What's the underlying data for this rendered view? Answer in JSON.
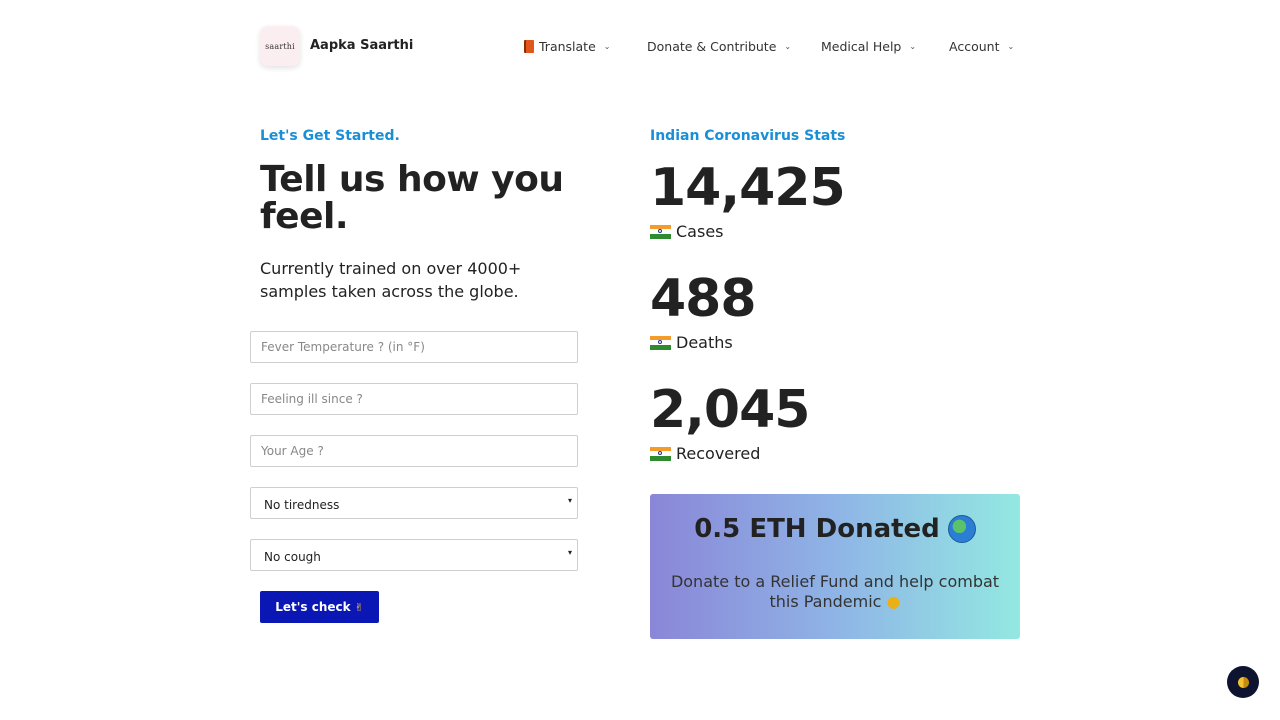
{
  "header": {
    "logo_text": "saarthi",
    "brand": "Aapka Saarthi",
    "nav": [
      {
        "label": "Translate",
        "icon": "book-icon"
      },
      {
        "label": "Donate & Contribute"
      },
      {
        "label": "Medical Help"
      },
      {
        "label": "Account"
      }
    ]
  },
  "form": {
    "eyebrow": "Let's Get Started.",
    "headline": "Tell us how you feel.",
    "subtext": "Currently trained on over 4000+ samples taken across the globe.",
    "fever_placeholder": "Fever Temperature ? (in °F)",
    "ill_since_placeholder": "Feeling ill since ?",
    "age_placeholder": "Your Age ?",
    "tiredness_value": "No tiredness",
    "cough_value": "No cough",
    "submit_label": "Let's check"
  },
  "stats": {
    "eyebrow": "Indian Coronavirus Stats",
    "cases_value": "14,425",
    "cases_label": "Cases",
    "deaths_value": "488",
    "deaths_label": "Deaths",
    "recovered_value": "2,045",
    "recovered_label": "Recovered"
  },
  "donate": {
    "title": "0.5 ETH Donated",
    "text": "Donate to a Relief Fund and help combat this Pandemic"
  },
  "colors": {
    "accent_blue": "#1a8fd6",
    "button_blue": "#0a17b4"
  }
}
